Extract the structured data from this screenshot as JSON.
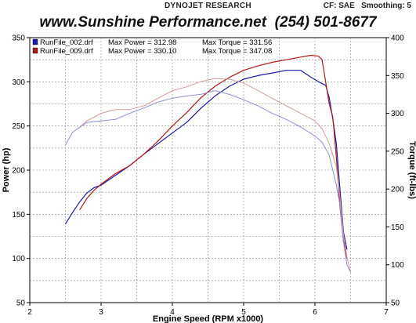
{
  "header": {
    "research": "DYNOJET RESEARCH",
    "settings": "CF: SAE   Smoothing: 5",
    "brand": "www.Sunshine Performance.net  (254) 501-8677"
  },
  "chart_data": {
    "type": "line",
    "xlabel": "Engine Speed (RPM x1000)",
    "ylabel": "Power (hp)",
    "y2label": "Torque (ft-lbs)",
    "xlim": [
      2,
      7
    ],
    "ylim": [
      50,
      350
    ],
    "y2lim": [
      50,
      400
    ],
    "xticks": [
      "2",
      "3",
      "4",
      "5",
      "6",
      "7"
    ],
    "yticks": [
      "50",
      "100",
      "150",
      "200",
      "250",
      "300",
      "350"
    ],
    "y2ticks": [
      "50",
      "100",
      "150",
      "200",
      "250",
      "300",
      "350",
      "400"
    ],
    "grid": true,
    "colors": {
      "run1": "#1a1aa8",
      "run2": "#b01818"
    },
    "legend": [
      {
        "file": "RunFile_002.drf",
        "power_text": "Max Power = 312.98",
        "torque_text": "Max Torque = 331.56",
        "color": "#1a1aa8"
      },
      {
        "file": "RunFile_009.drf",
        "power_text": "Max Power = 330.10",
        "torque_text": "Max Torque = 347.08",
        "color": "#b01818"
      }
    ],
    "series": [
      {
        "name": "RunFile_002.drf",
        "quantity": "power",
        "axis": "left",
        "color": "#1a1aa8",
        "x": [
          2.5,
          2.6,
          2.7,
          2.8,
          2.9,
          3.0,
          3.2,
          3.4,
          3.6,
          3.8,
          4.0,
          4.2,
          4.4,
          4.6,
          4.8,
          5.0,
          5.2,
          5.4,
          5.6,
          5.8,
          5.95,
          6.05,
          6.15,
          6.2,
          6.25,
          6.3,
          6.35,
          6.4,
          6.45
        ],
        "y": [
          139,
          152,
          164,
          174,
          180,
          183,
          194,
          205,
          218,
          230,
          242,
          254,
          270,
          284,
          295,
          303,
          307,
          310,
          313,
          313,
          305,
          300,
          296,
          282,
          258,
          230,
          180,
          130,
          110
        ]
      },
      {
        "name": "RunFile_009.drf",
        "quantity": "power",
        "axis": "left",
        "color": "#b01818",
        "x": [
          2.7,
          2.8,
          2.9,
          3.0,
          3.2,
          3.4,
          3.6,
          3.8,
          4.0,
          4.2,
          4.4,
          4.6,
          4.8,
          5.0,
          5.2,
          5.4,
          5.6,
          5.8,
          5.95,
          6.05,
          6.1,
          6.15,
          6.2,
          6.25,
          6.3,
          6.35,
          6.4,
          6.45
        ],
        "y": [
          155,
          168,
          177,
          184,
          196,
          205,
          218,
          233,
          250,
          265,
          282,
          295,
          305,
          313,
          318,
          322,
          325,
          328,
          330,
          329,
          325,
          300,
          275,
          260,
          215,
          160,
          120,
          100
        ]
      },
      {
        "name": "RunFile_002.drf",
        "quantity": "torque",
        "axis": "right",
        "color": "#8f8fd0",
        "x": [
          2.5,
          2.6,
          2.8,
          3.0,
          3.2,
          3.4,
          3.6,
          3.8,
          4.0,
          4.2,
          4.4,
          4.6,
          4.8,
          5.0,
          5.2,
          5.4,
          5.6,
          5.8,
          6.0,
          6.1,
          6.2,
          6.25,
          6.3,
          6.35,
          6.4,
          6.45,
          6.5
        ],
        "y": [
          258,
          275,
          288,
          290,
          292,
          300,
          307,
          315,
          320,
          323,
          325,
          330,
          325,
          318,
          310,
          300,
          292,
          282,
          270,
          262,
          245,
          225,
          205,
          180,
          130,
          100,
          90
        ]
      },
      {
        "name": "RunFile_009.drf",
        "quantity": "torque",
        "axis": "right",
        "color": "#d59a9a",
        "x": [
          2.7,
          2.8,
          3.0,
          3.2,
          3.4,
          3.6,
          3.8,
          4.0,
          4.2,
          4.4,
          4.6,
          4.8,
          5.0,
          5.2,
          5.4,
          5.6,
          5.8,
          6.0,
          6.1,
          6.2,
          6.25,
          6.3,
          6.35,
          6.4,
          6.45,
          6.5
        ],
        "y": [
          282,
          290,
          300,
          305,
          305,
          310,
          320,
          330,
          335,
          342,
          346,
          345,
          340,
          330,
          320,
          310,
          300,
          290,
          280,
          260,
          245,
          230,
          190,
          140,
          110,
          90
        ]
      }
    ]
  }
}
